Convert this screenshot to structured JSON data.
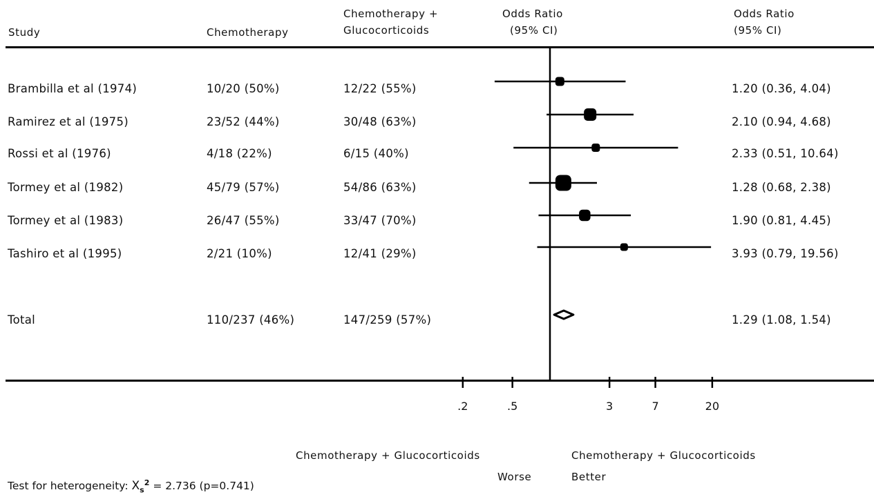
{
  "header": {
    "study": "Study",
    "chemo": "Chemotherapy",
    "combo_line1": "Chemotherapy +",
    "combo_line2": "Glucocorticoids",
    "or_line1": "Odds Ratio",
    "or_line2": "(95% CI)",
    "orci_line1": "Odds Ratio",
    "orci_line2": "(95% CI)"
  },
  "rows": [
    {
      "study": "Brambilla et al (1974)",
      "chemo": "10/20 (50%)",
      "combo": "12/22 (55%)",
      "orci": "1.20 (0.36, 4.04)"
    },
    {
      "study": "Ramirez et al (1975)",
      "chemo": "23/52 (44%)",
      "combo": "30/48 (63%)",
      "orci": "2.10 (0.94, 4.68)"
    },
    {
      "study": "Rossi et al (1976)",
      "chemo": "4/18 (22%)",
      "combo": "6/15 (40%)",
      "orci": "2.33 (0.51, 10.64)"
    },
    {
      "study": "Tormey et al (1982)",
      "chemo": "45/79 (57%)",
      "combo": "54/86 (63%)",
      "orci": "1.28 (0.68, 2.38)"
    },
    {
      "study": "Tormey et al (1983)",
      "chemo": "26/47 (55%)",
      "combo": "33/47 (70%)",
      "orci": "1.90 (0.81, 4.45)"
    },
    {
      "study": "Tashiro et al (1995)",
      "chemo": "2/21 (10%)",
      "combo": "12/41 (29%)",
      "orci": "3.93 (0.79, 19.56)"
    }
  ],
  "total": {
    "study": "Total",
    "chemo": "110/237 (46%)",
    "combo": "147/259 (57%)",
    "orci": "1.29 (1.08, 1.54)"
  },
  "axis": {
    "left_label_line1": "Chemotherapy + Glucocorticoids",
    "left_label_line2": "Worse",
    "right_label_line1": "Chemotherapy + Glucocorticoids",
    "right_label_line2": "Better"
  },
  "heterogeneity": {
    "prefix": "Test for heterogeneity:",
    "chi": "X",
    "sub": "s",
    "sup": "2",
    "rest": "= 2.736 (p=0.741)"
  },
  "chart_data": {
    "type": "forest",
    "scale": "log",
    "reference_line": 1,
    "xticks": [
      0.2,
      0.5,
      3,
      7,
      20
    ],
    "xtick_labels": [
      ".2",
      ".5",
      "3",
      "7",
      "20"
    ],
    "studies": [
      {
        "name": "Brambilla et al (1974)",
        "or": 1.2,
        "lo": 0.36,
        "hi": 4.04,
        "weight": 1
      },
      {
        "name": "Ramirez et al (1975)",
        "or": 2.1,
        "lo": 0.94,
        "hi": 4.68,
        "weight": 2
      },
      {
        "name": "Rossi et al (1976)",
        "or": 2.33,
        "lo": 0.51,
        "hi": 10.64,
        "weight": 0.8
      },
      {
        "name": "Tormey et al (1982)",
        "or": 1.28,
        "lo": 0.68,
        "hi": 2.38,
        "weight": 3
      },
      {
        "name": "Tormey et al (1983)",
        "or": 1.9,
        "lo": 0.81,
        "hi": 4.45,
        "weight": 1.7
      },
      {
        "name": "Tashiro et al (1995)",
        "or": 3.93,
        "lo": 0.79,
        "hi": 19.56,
        "weight": 0.6
      }
    ],
    "total": {
      "or": 1.29,
      "lo": 1.08,
      "hi": 1.54
    }
  }
}
